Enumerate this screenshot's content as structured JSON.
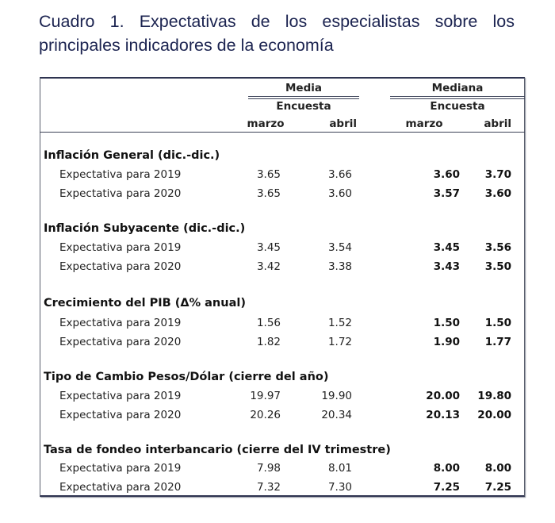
{
  "title": {
    "line1": "Cuadro 1. Expectativas de los especialistas sobre los",
    "line2": "principales indicadores de la economía"
  },
  "header": {
    "group_media": "Media",
    "group_mediana": "Mediana",
    "sub_media": "Encuesta",
    "sub_mediana": "Encuesta",
    "columns": [
      "marzo",
      "abril",
      "marzo",
      "abril"
    ]
  },
  "sections": [
    {
      "title": "Inflación General (dic.-dic.)",
      "rows": [
        {
          "label": "Expectativa para 2019",
          "media_marzo": "3.65",
          "media_abril": "3.66",
          "mediana_marzo": "3.60",
          "mediana_abril": "3.70"
        },
        {
          "label": "Expectativa para 2020",
          "media_marzo": "3.65",
          "media_abril": "3.60",
          "mediana_marzo": "3.57",
          "mediana_abril": "3.60"
        }
      ]
    },
    {
      "title": "Inflación Subyacente (dic.-dic.)",
      "rows": [
        {
          "label": "Expectativa para 2019",
          "media_marzo": "3.45",
          "media_abril": "3.54",
          "mediana_marzo": "3.45",
          "mediana_abril": "3.56"
        },
        {
          "label": "Expectativa para 2020",
          "media_marzo": "3.42",
          "media_abril": "3.38",
          "mediana_marzo": "3.43",
          "mediana_abril": "3.50"
        }
      ]
    },
    {
      "title": "Crecimiento del PIB (Δ% anual)",
      "rows": [
        {
          "label": "Expectativa para 2019",
          "media_marzo": "1.56",
          "media_abril": "1.52",
          "mediana_marzo": "1.50",
          "mediana_abril": "1.50"
        },
        {
          "label": "Expectativa para 2020",
          "media_marzo": "1.82",
          "media_abril": "1.72",
          "mediana_marzo": "1.90",
          "mediana_abril": "1.77"
        }
      ]
    },
    {
      "title": "Tipo de Cambio Pesos/Dólar (cierre del año)",
      "rows": [
        {
          "label": "Expectativa para 2019",
          "media_marzo": "19.97",
          "media_abril": "19.90",
          "mediana_marzo": "20.00",
          "mediana_abril": "19.80"
        },
        {
          "label": "Expectativa para 2020",
          "media_marzo": "20.26",
          "media_abril": "20.34",
          "mediana_marzo": "20.13",
          "mediana_abril": "20.00"
        }
      ]
    },
    {
      "title": "Tasa de fondeo interbancario (cierre del IV trimestre)",
      "rows": [
        {
          "label": "Expectativa para 2019",
          "media_marzo": "7.98",
          "media_abril": "8.01",
          "mediana_marzo": "8.00",
          "mediana_abril": "8.00"
        },
        {
          "label": "Expectativa para 2020",
          "media_marzo": "7.32",
          "media_abril": "7.30",
          "mediana_marzo": "7.25",
          "mediana_abril": "7.25"
        }
      ]
    }
  ],
  "colors": {
    "title": "#1b2350",
    "rules": "#3c4257",
    "text": "#111111"
  }
}
